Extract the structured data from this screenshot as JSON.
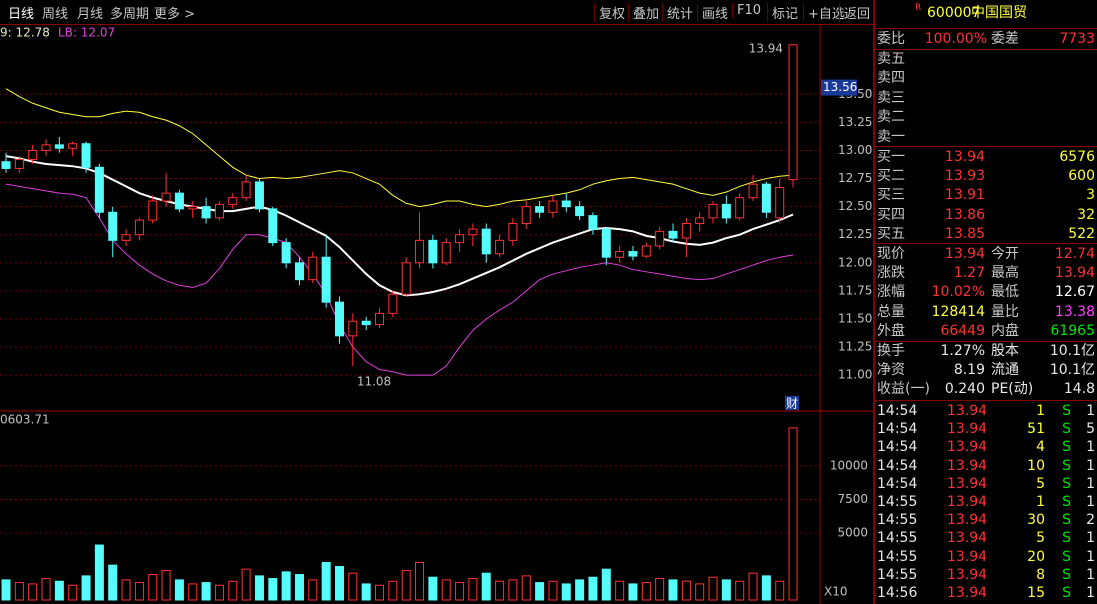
{
  "toolbar": {
    "tabs": [
      "日线",
      "周线",
      "月线",
      "多周期",
      "更多 >"
    ],
    "buttons": [
      "复权",
      "叠加",
      "统计",
      "画线",
      "F10",
      "标记",
      "+自选",
      "返回"
    ]
  },
  "indicator": {
    "upper": "9: 12.78",
    "lower": "LB: 12.07"
  },
  "price_chart": {
    "type": "candlestick",
    "ylim": [
      10.69,
      14.09
    ],
    "yticks": [
      {
        "value": 13.5,
        "label": "13.50"
      },
      13.25,
      {
        "value": 13.0,
        "label": "13.00"
      },
      12.75,
      {
        "value": 12.5,
        "label": "12.50"
      },
      12.25,
      {
        "value": 12.0,
        "label": "12.00"
      },
      11.75,
      {
        "value": 11.5,
        "label": "11.50"
      },
      11.25,
      {
        "value": 11.0,
        "label": "11.00"
      }
    ],
    "grid": true,
    "up_color": "#ff3232",
    "down_color": "#54fcfc",
    "cursor_price": 13.56,
    "high_mark": 13.94,
    "low_mark": 11.08,
    "badge": "财",
    "candles": [
      [
        12.9,
        12.98,
        12.8,
        12.84
      ],
      [
        12.84,
        12.95,
        12.8,
        12.92
      ],
      [
        12.92,
        13.05,
        12.88,
        13.0
      ],
      [
        13.0,
        13.1,
        12.95,
        13.05
      ],
      [
        13.05,
        13.12,
        12.98,
        13.02
      ],
      [
        13.02,
        13.08,
        12.95,
        13.06
      ],
      [
        13.06,
        13.08,
        12.8,
        12.85
      ],
      [
        12.85,
        12.88,
        12.4,
        12.45
      ],
      [
        12.45,
        12.5,
        12.05,
        12.2
      ],
      [
        12.2,
        12.3,
        12.15,
        12.25
      ],
      [
        12.25,
        12.4,
        12.2,
        12.38
      ],
      [
        12.38,
        12.6,
        12.35,
        12.55
      ],
      [
        12.55,
        12.8,
        12.5,
        12.62
      ],
      [
        12.62,
        12.65,
        12.45,
        12.48
      ],
      [
        12.48,
        12.55,
        12.4,
        12.5
      ],
      [
        12.5,
        12.58,
        12.35,
        12.4
      ],
      [
        12.4,
        12.55,
        12.38,
        12.52
      ],
      [
        12.52,
        12.62,
        12.48,
        12.58
      ],
      [
        12.58,
        12.78,
        12.55,
        12.72
      ],
      [
        12.72,
        12.75,
        12.45,
        12.48
      ],
      [
        12.48,
        12.5,
        12.15,
        12.18
      ],
      [
        12.18,
        12.22,
        11.95,
        12.0
      ],
      [
        12.0,
        12.05,
        11.8,
        11.85
      ],
      [
        11.85,
        12.1,
        11.82,
        12.05
      ],
      [
        12.05,
        12.25,
        11.6,
        11.65
      ],
      [
        11.65,
        11.7,
        11.28,
        11.35
      ],
      [
        11.35,
        11.55,
        11.08,
        11.48
      ],
      [
        11.48,
        11.52,
        11.4,
        11.45
      ],
      [
        11.45,
        11.6,
        11.42,
        11.55
      ],
      [
        11.55,
        11.75,
        11.52,
        11.72
      ],
      [
        11.72,
        12.05,
        11.7,
        12.0
      ],
      [
        12.0,
        12.45,
        11.95,
        12.2
      ],
      [
        12.2,
        12.25,
        11.95,
        12.0
      ],
      [
        12.0,
        12.22,
        11.98,
        12.18
      ],
      [
        12.18,
        12.3,
        12.1,
        12.25
      ],
      [
        12.25,
        12.35,
        12.15,
        12.3
      ],
      [
        12.3,
        12.35,
        12.0,
        12.08
      ],
      [
        12.08,
        12.25,
        12.05,
        12.2
      ],
      [
        12.2,
        12.4,
        12.15,
        12.35
      ],
      [
        12.35,
        12.55,
        12.3,
        12.5
      ],
      [
        12.5,
        12.55,
        12.4,
        12.45
      ],
      [
        12.45,
        12.6,
        12.4,
        12.55
      ],
      [
        12.55,
        12.62,
        12.45,
        12.5
      ],
      [
        12.5,
        12.55,
        12.38,
        12.42
      ],
      [
        12.42,
        12.45,
        12.25,
        12.3
      ],
      [
        12.3,
        12.32,
        11.98,
        12.05
      ],
      [
        12.05,
        12.15,
        12.0,
        12.1
      ],
      [
        12.1,
        12.15,
        12.02,
        12.06
      ],
      [
        12.06,
        12.18,
        12.04,
        12.15
      ],
      [
        12.15,
        12.32,
        12.12,
        12.28
      ],
      [
        12.28,
        12.35,
        12.18,
        12.22
      ],
      [
        12.22,
        12.4,
        12.05,
        12.35
      ],
      [
        12.35,
        12.45,
        12.28,
        12.4
      ],
      [
        12.4,
        12.55,
        12.35,
        12.52
      ],
      [
        12.52,
        12.6,
        12.35,
        12.4
      ],
      [
        12.4,
        12.62,
        12.38,
        12.58
      ],
      [
        12.58,
        12.78,
        12.55,
        12.7
      ],
      [
        12.7,
        12.72,
        12.4,
        12.45
      ],
      [
        12.4,
        12.75,
        12.35,
        12.67
      ],
      [
        12.74,
        13.94,
        12.67,
        13.94
      ]
    ],
    "lines": [
      {
        "color": "#ffff40",
        "values": [
          13.55,
          13.48,
          13.42,
          13.38,
          13.34,
          13.32,
          13.3,
          13.3,
          13.33,
          13.35,
          13.34,
          13.3,
          13.27,
          13.22,
          13.15,
          13.05,
          12.95,
          12.85,
          12.78,
          12.75,
          12.76,
          12.75,
          12.76,
          12.78,
          12.8,
          12.82,
          12.8,
          12.75,
          12.7,
          12.6,
          12.53,
          12.5,
          12.52,
          12.55,
          12.55,
          12.52,
          12.5,
          12.52,
          12.55,
          12.56,
          12.58,
          12.6,
          12.62,
          12.65,
          12.7,
          12.73,
          12.75,
          12.76,
          12.74,
          12.72,
          12.7,
          12.66,
          12.62,
          12.6,
          12.63,
          12.68,
          12.72,
          12.75,
          12.77,
          12.78
        ]
      },
      {
        "color": "#ffffff",
        "values": [
          12.95,
          12.93,
          12.9,
          12.88,
          12.87,
          12.86,
          12.84,
          12.8,
          12.74,
          12.68,
          12.62,
          12.58,
          12.55,
          12.52,
          12.5,
          12.48,
          12.46,
          12.46,
          12.48,
          12.5,
          12.47,
          12.42,
          12.36,
          12.3,
          12.24,
          12.14,
          12.02,
          11.9,
          11.8,
          11.74,
          11.71,
          11.72,
          11.74,
          11.77,
          11.81,
          11.86,
          11.91,
          11.96,
          12.02,
          12.08,
          12.13,
          12.18,
          12.22,
          12.26,
          12.3,
          12.31,
          12.3,
          12.28,
          12.24,
          12.22,
          12.19,
          12.17,
          12.16,
          12.18,
          12.22,
          12.25,
          12.3,
          12.34,
          12.38,
          12.43
        ]
      },
      {
        "color": "#e040e0",
        "values": [
          12.7,
          12.68,
          12.66,
          12.64,
          12.62,
          12.61,
          12.58,
          12.4,
          12.2,
          12.08,
          11.98,
          11.9,
          11.84,
          11.8,
          11.78,
          11.82,
          11.95,
          12.12,
          12.25,
          12.25,
          12.22,
          12.18,
          12.05,
          11.9,
          11.72,
          11.45,
          11.25,
          11.12,
          11.05,
          11.03,
          11.0,
          11.0,
          11.0,
          11.08,
          11.25,
          11.4,
          11.5,
          11.58,
          11.65,
          11.75,
          11.85,
          11.9,
          11.93,
          11.96,
          11.98,
          12.0,
          11.98,
          11.94,
          11.92,
          11.9,
          11.88,
          11.86,
          11.85,
          11.86,
          11.9,
          11.94,
          11.98,
          12.02,
          12.05,
          12.07
        ]
      }
    ]
  },
  "volume_chart": {
    "type": "bar",
    "title": "0603.71",
    "unit": "X10",
    "ylim": [
      0,
      13800
    ],
    "yticks": [
      5000,
      7500,
      10000
    ],
    "values": [
      1500,
      1300,
      1200,
      1600,
      1400,
      1100,
      1800,
      4100,
      2600,
      1500,
      1300,
      1900,
      2200,
      1500,
      1200,
      1300,
      1100,
      1400,
      2300,
      1800,
      1600,
      2100,
      1900,
      1500,
      2800,
      2500,
      2000,
      1200,
      1100,
      1400,
      2200,
      2800,
      1700,
      1500,
      1300,
      1600,
      2000,
      1400,
      1500,
      1800,
      1300,
      1400,
      1200,
      1500,
      1700,
      2300,
      1400,
      1200,
      1300,
      1600,
      1500,
      1400,
      1200,
      1700,
      1500,
      1400,
      2000,
      1800,
      1400,
      12841
    ]
  },
  "quote": {
    "badge": "R",
    "code": "600007",
    "name": "中国国贸",
    "weibi": [
      "委比",
      "100.00%",
      "委差",
      "7733"
    ],
    "sells": [
      "卖五",
      "卖四",
      "卖三",
      "卖二",
      "卖一"
    ],
    "buys": [
      [
        "买一",
        "13.94",
        "6576"
      ],
      [
        "买二",
        "13.93",
        "600"
      ],
      [
        "买三",
        "13.91",
        "3"
      ],
      [
        "买四",
        "13.86",
        "32"
      ],
      [
        "买五",
        "13.85",
        "522"
      ]
    ],
    "stats": [
      [
        "现价",
        "13.94",
        "今开",
        "12.74"
      ],
      [
        "涨跌",
        "1.27",
        "最高",
        "13.94"
      ],
      [
        "涨幅",
        "10.02%",
        "最低",
        "12.67"
      ],
      [
        "总量",
        "128414",
        "量比",
        "13.38"
      ],
      [
        "外盘",
        "66449",
        "内盘",
        "61965"
      ]
    ],
    "info": [
      [
        "换手",
        "1.27%",
        "股本",
        "10.1亿"
      ],
      [
        "净资",
        "8.19",
        "流通",
        "10.1亿"
      ],
      [
        "收益(一)",
        "0.240",
        "PE(动)",
        "14.8"
      ]
    ],
    "trades": [
      [
        "14:54",
        "13.94",
        "1",
        "S",
        "1"
      ],
      [
        "14:54",
        "13.94",
        "51",
        "S",
        "5"
      ],
      [
        "14:54",
        "13.94",
        "4",
        "S",
        "1"
      ],
      [
        "14:54",
        "13.94",
        "10",
        "S",
        "1"
      ],
      [
        "14:54",
        "13.94",
        "5",
        "S",
        "1"
      ],
      [
        "14:55",
        "13.94",
        "1",
        "S",
        "1"
      ],
      [
        "14:55",
        "13.94",
        "30",
        "S",
        "2"
      ],
      [
        "14:55",
        "13.94",
        "5",
        "S",
        "1"
      ],
      [
        "14:55",
        "13.94",
        "20",
        "S",
        "1"
      ],
      [
        "14:55",
        "13.94",
        "8",
        "S",
        "1"
      ],
      [
        "14:56",
        "13.94",
        "15",
        "S",
        "1"
      ]
    ]
  }
}
